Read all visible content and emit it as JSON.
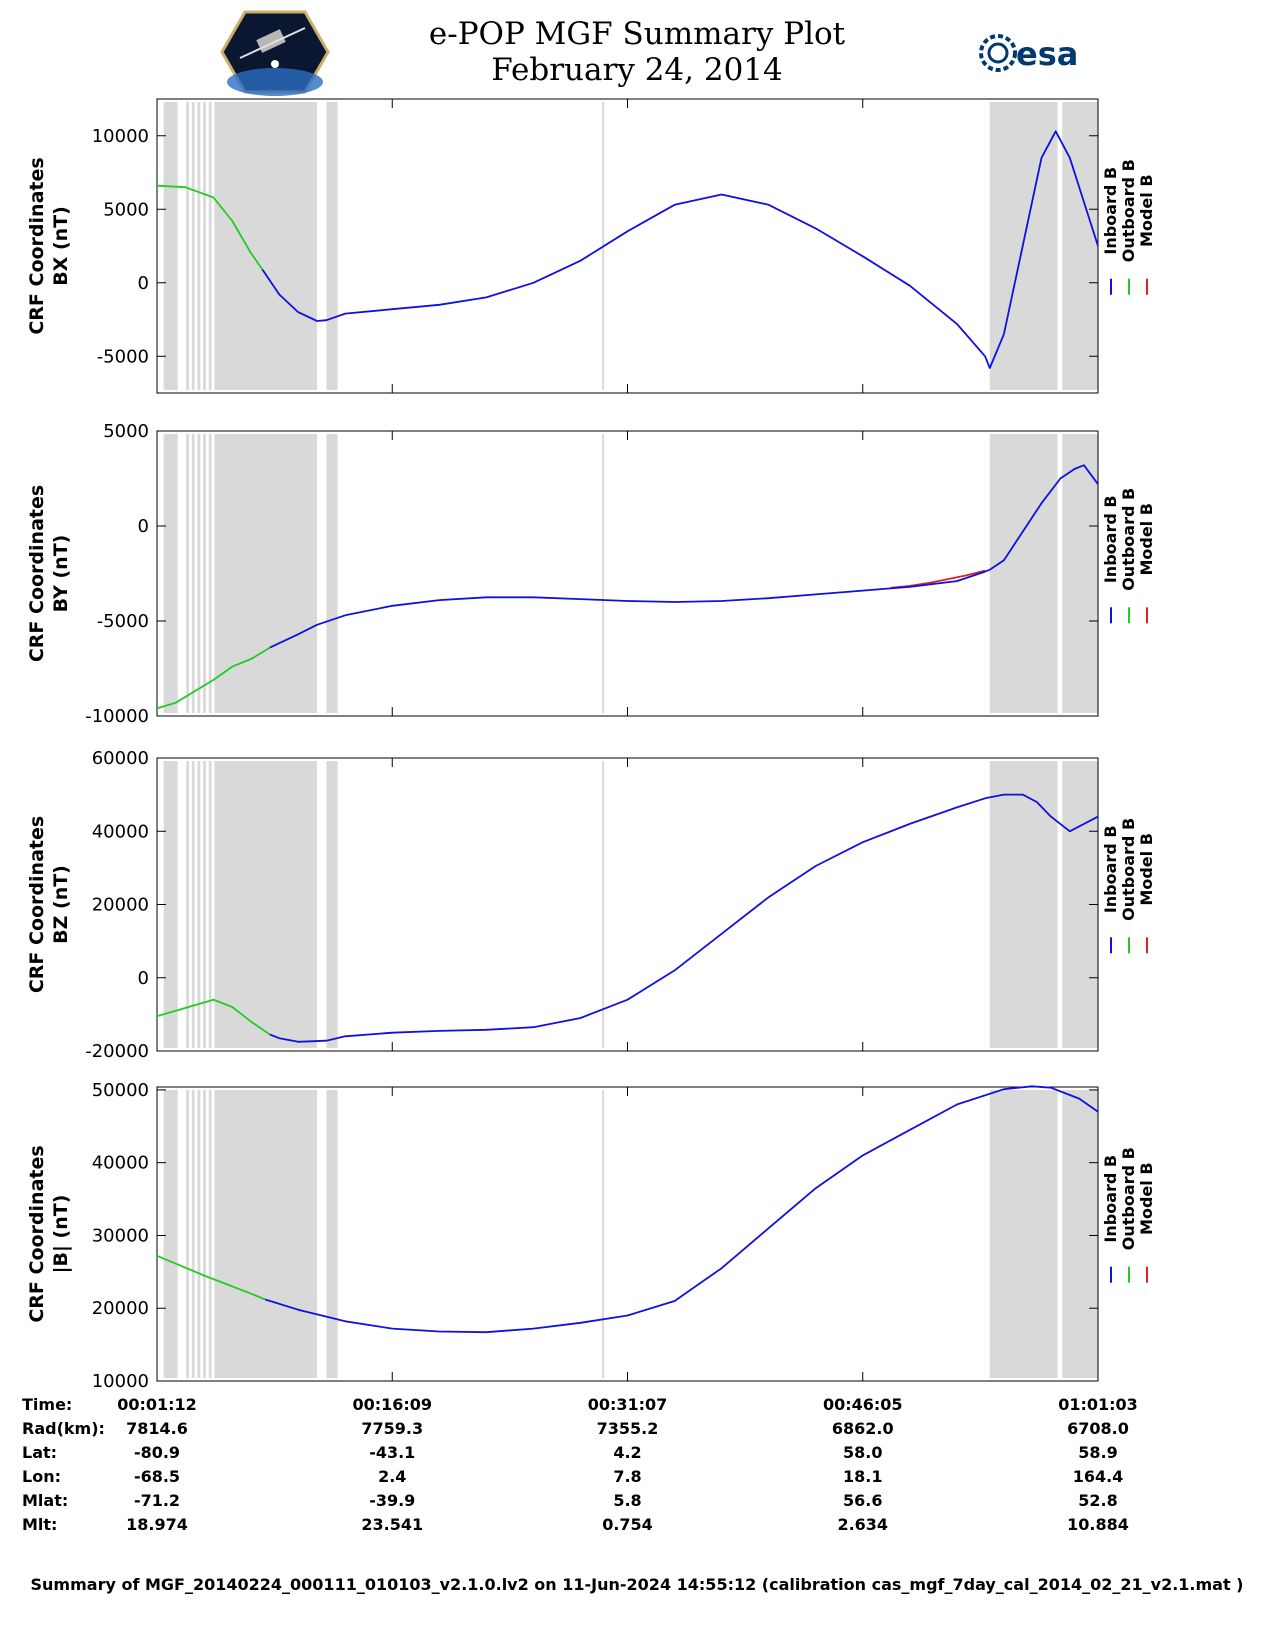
{
  "title": {
    "line1": "e-POP MGF Summary Plot",
    "line2": "February 24, 2014"
  },
  "logos": {
    "left": "cassiope-mission-logo",
    "right_text": "esa"
  },
  "colors": {
    "inboard": "#1010e0",
    "outboard": "#22cc22",
    "model": "#e02020",
    "shade": "#d9d9d9",
    "esa": "#003a70"
  },
  "legend": {
    "inboard": "Inboard B",
    "outboard": "Outboard B",
    "model": "Model B"
  },
  "chart_data": [
    {
      "type": "line",
      "ylabel_line1": "CRF Coordinates",
      "ylabel_line2": "BX (nT)",
      "ylim": [
        -7500,
        12500
      ],
      "yticks": [
        -5000,
        0,
        5000,
        10000
      ],
      "ytick_labels": [
        "-5000",
        "0",
        "5000",
        "10000"
      ],
      "xlim": [
        0,
        1
      ],
      "shaded_intervals": [
        [
          0.007,
          0.022
        ],
        [
          0.031,
          0.034
        ],
        [
          0.037,
          0.04
        ],
        [
          0.043,
          0.046
        ],
        [
          0.049,
          0.052
        ],
        [
          0.055,
          0.058
        ],
        [
          0.061,
          0.17
        ],
        [
          0.18,
          0.192
        ],
        [
          0.473,
          0.475
        ],
        [
          0.885,
          0.957
        ],
        [
          0.962,
          1.0
        ]
      ],
      "outboard": {
        "x": [
          0.0,
          0.03,
          0.06,
          0.08,
          0.1,
          0.112
        ],
        "y": [
          6600,
          6500,
          5800,
          4200,
          2000,
          900
        ]
      },
      "inboard": {
        "x": [
          0.112,
          0.13,
          0.15,
          0.17,
          0.18,
          0.2,
          0.25,
          0.3,
          0.35,
          0.4,
          0.45,
          0.5,
          0.55,
          0.6,
          0.65,
          0.7,
          0.75,
          0.8,
          0.85,
          0.88,
          0.885,
          0.9,
          0.92,
          0.94,
          0.955,
          0.97,
          1.0
        ],
        "y": [
          900,
          -800,
          -2000,
          -2600,
          -2550,
          -2100,
          -1800,
          -1500,
          -1000,
          0,
          1500,
          3500,
          5300,
          6000,
          5300,
          3700,
          1800,
          -200,
          -2800,
          -5000,
          -5800,
          -3500,
          2500,
          8500,
          10300,
          8500,
          2500
        ]
      }
    },
    {
      "type": "line",
      "ylabel_line1": "CRF Coordinates",
      "ylabel_line2": "BY (nT)",
      "ylim": [
        -10000,
        5000
      ],
      "yticks": [
        -10000,
        -5000,
        0,
        5000
      ],
      "ytick_labels": [
        "-10000",
        "-5000",
        "0",
        "5000"
      ],
      "xlim": [
        0,
        1
      ],
      "shaded_intervals": [
        [
          0.007,
          0.022
        ],
        [
          0.031,
          0.034
        ],
        [
          0.037,
          0.04
        ],
        [
          0.043,
          0.046
        ],
        [
          0.049,
          0.052
        ],
        [
          0.055,
          0.058
        ],
        [
          0.061,
          0.17
        ],
        [
          0.18,
          0.192
        ],
        [
          0.473,
          0.475
        ],
        [
          0.885,
          0.957
        ],
        [
          0.962,
          1.0
        ]
      ],
      "outboard": {
        "x": [
          0.0,
          0.02,
          0.04,
          0.06,
          0.08,
          0.1,
          0.12
        ],
        "y": [
          -9600,
          -9300,
          -8700,
          -8100,
          -7400,
          -7000,
          -6400
        ]
      },
      "inboard": {
        "x": [
          0.12,
          0.15,
          0.17,
          0.2,
          0.25,
          0.3,
          0.35,
          0.4,
          0.45,
          0.5,
          0.55,
          0.6,
          0.65,
          0.7,
          0.75,
          0.8,
          0.85,
          0.88,
          0.885,
          0.9,
          0.92,
          0.94,
          0.96,
          0.975,
          0.985,
          1.0
        ],
        "y": [
          -6400,
          -5700,
          -5200,
          -4700,
          -4200,
          -3900,
          -3750,
          -3750,
          -3850,
          -3950,
          -4000,
          -3950,
          -3800,
          -3600,
          -3400,
          -3200,
          -2900,
          -2400,
          -2300,
          -1800,
          -300,
          1200,
          2500,
          3000,
          3200,
          2200
        ]
      },
      "model": {
        "x": [
          0.78,
          0.8,
          0.82,
          0.84,
          0.86,
          0.88
        ],
        "y": [
          -3250,
          -3150,
          -3000,
          -2800,
          -2600,
          -2350
        ]
      }
    },
    {
      "type": "line",
      "ylabel_line1": "CRF Coordinates",
      "ylabel_line2": "BZ (nT)",
      "ylim": [
        -20000,
        60000
      ],
      "yticks": [
        -20000,
        0,
        20000,
        40000,
        60000
      ],
      "ytick_labels": [
        "-20000",
        "0",
        "20000",
        "40000",
        "60000"
      ],
      "xlim": [
        0,
        1
      ],
      "shaded_intervals": [
        [
          0.007,
          0.022
        ],
        [
          0.031,
          0.034
        ],
        [
          0.037,
          0.04
        ],
        [
          0.043,
          0.046
        ],
        [
          0.049,
          0.052
        ],
        [
          0.055,
          0.058
        ],
        [
          0.061,
          0.17
        ],
        [
          0.18,
          0.192
        ],
        [
          0.473,
          0.475
        ],
        [
          0.885,
          0.957
        ],
        [
          0.962,
          1.0
        ]
      ],
      "outboard": {
        "x": [
          0.0,
          0.02,
          0.04,
          0.06,
          0.08,
          0.1,
          0.12
        ],
        "y": [
          -10500,
          -9000,
          -7500,
          -6000,
          -8000,
          -12000,
          -15500
        ]
      },
      "inboard": {
        "x": [
          0.12,
          0.13,
          0.15,
          0.18,
          0.2,
          0.25,
          0.3,
          0.35,
          0.4,
          0.45,
          0.5,
          0.55,
          0.6,
          0.65,
          0.7,
          0.75,
          0.8,
          0.85,
          0.88,
          0.9,
          0.92,
          0.935,
          0.95,
          0.97,
          1.0
        ],
        "y": [
          -15500,
          -16500,
          -17500,
          -17200,
          -16000,
          -15000,
          -14500,
          -14200,
          -13500,
          -11000,
          -6000,
          2000,
          12000,
          22000,
          30500,
          37000,
          42000,
          46500,
          49000,
          50000,
          50000,
          48000,
          44000,
          40000,
          44000
        ]
      }
    },
    {
      "type": "line",
      "ylabel_line1": "CRF Coordinates",
      "ylabel_line2": "|B| (nT)",
      "ylim": [
        10000,
        50400
      ],
      "yticks": [
        10000,
        20000,
        30000,
        40000,
        50000
      ],
      "ytick_labels": [
        "10000",
        "20000",
        "30000",
        "40000",
        "50000"
      ],
      "xlim": [
        0,
        1
      ],
      "shaded_intervals": [
        [
          0.007,
          0.022
        ],
        [
          0.031,
          0.034
        ],
        [
          0.037,
          0.04
        ],
        [
          0.043,
          0.046
        ],
        [
          0.049,
          0.052
        ],
        [
          0.055,
          0.058
        ],
        [
          0.061,
          0.17
        ],
        [
          0.18,
          0.192
        ],
        [
          0.473,
          0.475
        ],
        [
          0.885,
          0.957
        ],
        [
          0.962,
          1.0
        ]
      ],
      "outboard": {
        "x": [
          0.0,
          0.05,
          0.1,
          0.115
        ],
        "y": [
          27200,
          24500,
          22000,
          21200
        ]
      },
      "inboard": {
        "x": [
          0.115,
          0.15,
          0.2,
          0.25,
          0.3,
          0.35,
          0.4,
          0.45,
          0.5,
          0.55,
          0.6,
          0.65,
          0.7,
          0.75,
          0.8,
          0.85,
          0.9,
          0.93,
          0.95,
          0.98,
          1.0
        ],
        "y": [
          21200,
          19800,
          18200,
          17200,
          16800,
          16700,
          17200,
          18000,
          19000,
          21000,
          25500,
          31000,
          36500,
          41000,
          44500,
          48000,
          50100,
          50500,
          50300,
          48800,
          47000
        ]
      }
    }
  ],
  "table": {
    "labels": [
      "Time:",
      "Rad(km):",
      "Lat:",
      "Lon:",
      "Mlat:",
      "Mlt:"
    ],
    "columns": [
      [
        "00:01:12",
        "7814.6",
        "-80.9",
        "-68.5",
        "-71.2",
        "18.974"
      ],
      [
        "00:16:09",
        "7759.3",
        "-43.1",
        "2.4",
        "-39.9",
        "23.541"
      ],
      [
        "00:31:07",
        "7355.2",
        "4.2",
        "7.8",
        "5.8",
        "0.754"
      ],
      [
        "00:46:05",
        "6862.0",
        "58.0",
        "18.1",
        "56.6",
        "2.634"
      ],
      [
        "01:01:03",
        "6708.0",
        "58.9",
        "164.4",
        "52.8",
        "10.884"
      ]
    ]
  },
  "footer": "Summary of MGF_20140224_000111_010103_v2.1.0.lv2 on 11-Jun-2024 14:55:12 (calibration cas_mgf_7day_cal_2014_02_21_v2.1.mat )"
}
